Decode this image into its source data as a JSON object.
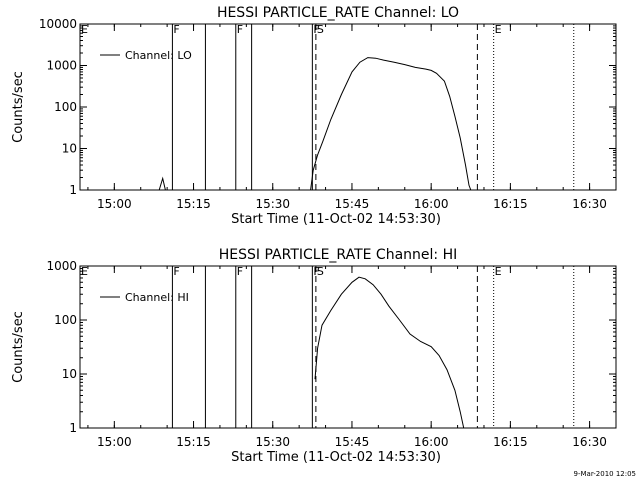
{
  "chart_data": [
    {
      "type": "line",
      "title": "HESSI PARTICLE_RATE Channel: LO",
      "xlabel": "Start Time (11-Oct-02 14:53:30)",
      "ylabel": "Counts/sec",
      "yscale": "log",
      "xlim": [
        "14:53:30",
        "16:35:00"
      ],
      "ylim": [
        1,
        10000
      ],
      "xticks": [
        "15:00",
        "15:15",
        "15:30",
        "15:45",
        "16:00",
        "16:15",
        "16:30"
      ],
      "yticks": [
        "1",
        "10",
        "100",
        "1000",
        "10000"
      ],
      "legend": "top-left",
      "grid": false,
      "series": [
        {
          "name": "Channel: LO",
          "points": [
            [
              "15:08:30",
              1
            ],
            [
              "15:09:10",
              1.9
            ],
            [
              "15:09:40",
              1
            ],
            [
              "15:37:10",
              1
            ],
            [
              "15:37:40",
              3
            ],
            [
              "15:38:30",
              7
            ],
            [
              "15:39:30",
              15
            ],
            [
              "15:41:00",
              50
            ],
            [
              "15:43:00",
              200
            ],
            [
              "15:45:00",
              700
            ],
            [
              "15:46:30",
              1200
            ],
            [
              "15:48:00",
              1550
            ],
            [
              "15:49:30",
              1500
            ],
            [
              "15:51:00",
              1350
            ],
            [
              "15:53:00",
              1200
            ],
            [
              "15:55:00",
              1050
            ],
            [
              "15:57:00",
              900
            ],
            [
              "15:59:00",
              820
            ],
            [
              "16:00:00",
              760
            ],
            [
              "16:01:00",
              650
            ],
            [
              "16:02:30",
              420
            ],
            [
              "16:03:30",
              180
            ],
            [
              "16:04:30",
              60
            ],
            [
              "16:05:30",
              18
            ],
            [
              "16:06:30",
              4
            ],
            [
              "16:07:10",
              1.3
            ],
            [
              "16:07:30",
              1
            ]
          ]
        }
      ],
      "markers": [
        {
          "label": "E",
          "time": "14:53:30",
          "style": "dotted"
        },
        {
          "label": "F",
          "time": "15:11:00",
          "style": "solid"
        },
        {
          "label": "",
          "time": "15:17:15",
          "style": "solid"
        },
        {
          "label": "F",
          "time": "15:23:00",
          "style": "solid"
        },
        {
          "label": "",
          "time": "15:26:00",
          "style": "solid"
        },
        {
          "label": "F",
          "time": "15:37:30",
          "style": "solid"
        },
        {
          "label": "S",
          "time": "15:38:10",
          "style": "dashed"
        },
        {
          "label": "",
          "time": "16:08:45",
          "style": "dashed"
        },
        {
          "label": "E",
          "time": "16:11:50",
          "style": "dotted"
        },
        {
          "label": "",
          "time": "16:27:00",
          "style": "dotted"
        }
      ]
    },
    {
      "type": "line",
      "title": "HESSI PARTICLE_RATE Channel: HI",
      "xlabel": "Start Time (11-Oct-02 14:53:30)",
      "ylabel": "Counts/sec",
      "yscale": "log",
      "xlim": [
        "14:53:30",
        "16:35:00"
      ],
      "ylim": [
        1,
        1000
      ],
      "xticks": [
        "15:00",
        "15:15",
        "15:30",
        "15:45",
        "16:00",
        "16:15",
        "16:30"
      ],
      "yticks": [
        "1",
        "10",
        "100",
        "1000"
      ],
      "legend": "top-left",
      "grid": false,
      "series": [
        {
          "name": "Channel: HI",
          "points": [
            [
              "15:38:00",
              8
            ],
            [
              "15:38:30",
              30
            ],
            [
              "15:39:20",
              80
            ],
            [
              "15:41:00",
              150
            ],
            [
              "15:43:00",
              300
            ],
            [
              "15:45:00",
              500
            ],
            [
              "15:46:20",
              620
            ],
            [
              "15:47:30",
              580
            ],
            [
              "15:49:00",
              450
            ],
            [
              "15:50:30",
              300
            ],
            [
              "15:52:00",
              180
            ],
            [
              "15:54:00",
              100
            ],
            [
              "15:56:00",
              55
            ],
            [
              "15:58:00",
              40
            ],
            [
              "16:00:00",
              32
            ],
            [
              "16:01:30",
              22
            ],
            [
              "16:03:00",
              12
            ],
            [
              "16:04:30",
              5
            ],
            [
              "16:05:30",
              2
            ],
            [
              "16:06:10",
              1
            ]
          ]
        }
      ],
      "markers": [
        {
          "label": "E",
          "time": "14:53:30",
          "style": "dotted"
        },
        {
          "label": "F",
          "time": "15:11:00",
          "style": "solid"
        },
        {
          "label": "",
          "time": "15:17:15",
          "style": "solid"
        },
        {
          "label": "F",
          "time": "15:23:00",
          "style": "solid"
        },
        {
          "label": "",
          "time": "15:26:00",
          "style": "solid"
        },
        {
          "label": "F",
          "time": "15:37:30",
          "style": "solid"
        },
        {
          "label": "S",
          "time": "15:38:10",
          "style": "dashed"
        },
        {
          "label": "",
          "time": "16:08:45",
          "style": "dashed"
        },
        {
          "label": "E",
          "time": "16:11:50",
          "style": "dotted"
        },
        {
          "label": "",
          "time": "16:27:00",
          "style": "dotted"
        }
      ]
    }
  ],
  "footer": {
    "timestamp": "9-Mar-2010 12:05"
  }
}
